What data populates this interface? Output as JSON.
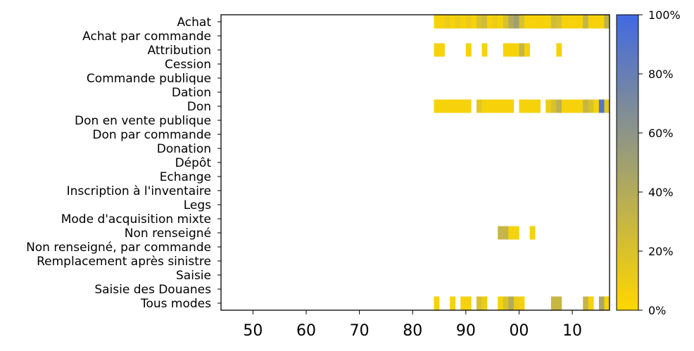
{
  "chart_data": {
    "type": "heatmap",
    "title": "",
    "xlabel": "",
    "ylabel": "",
    "x_range": [
      1944,
      2017
    ],
    "x_ticks": [
      {
        "value": 1950,
        "label": "50"
      },
      {
        "value": 1960,
        "label": "60"
      },
      {
        "value": 1970,
        "label": "70"
      },
      {
        "value": 1980,
        "label": "80"
      },
      {
        "value": 1990,
        "label": "90"
      },
      {
        "value": 2000,
        "label": "00"
      },
      {
        "value": 2010,
        "label": "10"
      }
    ],
    "categories": [
      "Achat",
      "Achat par commande",
      "Attribution",
      "Cession",
      "Commande publique",
      "Dation",
      "Don",
      "Don en vente publique",
      "Don par commande",
      "Donation",
      "Dépôt",
      "Echange",
      "Inscription à l'inventaire",
      "Legs",
      "Mode d'acquisition mixte",
      "Non renseigné",
      "Non renseigné, par commande",
      "Remplacement après sinistre",
      "Saisie",
      "Saisie des Douanes",
      "Tous modes"
    ],
    "value_unit": "%",
    "cells": {
      "Achat": [
        [
          1984,
          5
        ],
        [
          1985,
          5
        ],
        [
          1986,
          10
        ],
        [
          1987,
          5
        ],
        [
          1988,
          10
        ],
        [
          1989,
          5
        ],
        [
          1990,
          10
        ],
        [
          1991,
          5
        ],
        [
          1992,
          20
        ],
        [
          1993,
          25
        ],
        [
          1994,
          5
        ],
        [
          1995,
          10
        ],
        [
          1996,
          5
        ],
        [
          1997,
          20
        ],
        [
          1998,
          40
        ],
        [
          1999,
          50
        ],
        [
          2000,
          20
        ],
        [
          2001,
          5
        ],
        [
          2002,
          5
        ],
        [
          2003,
          5
        ],
        [
          2004,
          5
        ],
        [
          2005,
          5
        ],
        [
          2006,
          25
        ],
        [
          2007,
          20
        ],
        [
          2008,
          5
        ],
        [
          2009,
          5
        ],
        [
          2010,
          5
        ],
        [
          2011,
          5
        ],
        [
          2012,
          30
        ],
        [
          2013,
          5
        ],
        [
          2014,
          5
        ],
        [
          2015,
          5
        ],
        [
          2016,
          35
        ]
      ],
      "Attribution": [
        [
          1984,
          5
        ],
        [
          1985,
          5
        ],
        [
          1990,
          5
        ],
        [
          1993,
          5
        ],
        [
          1997,
          5
        ],
        [
          1998,
          5
        ],
        [
          1999,
          5
        ],
        [
          2000,
          30
        ],
        [
          2001,
          5
        ],
        [
          2007,
          5
        ]
      ],
      "Don": [
        [
          1984,
          5
        ],
        [
          1985,
          5
        ],
        [
          1986,
          5
        ],
        [
          1987,
          5
        ],
        [
          1988,
          5
        ],
        [
          1989,
          5
        ],
        [
          1990,
          5
        ],
        [
          1992,
          15
        ],
        [
          1993,
          5
        ],
        [
          1994,
          5
        ],
        [
          1995,
          5
        ],
        [
          1996,
          5
        ],
        [
          1997,
          5
        ],
        [
          1998,
          5
        ],
        [
          2000,
          5
        ],
        [
          2001,
          5
        ],
        [
          2002,
          5
        ],
        [
          2003,
          5
        ],
        [
          2005,
          10
        ],
        [
          2006,
          20
        ],
        [
          2007,
          35
        ],
        [
          2008,
          5
        ],
        [
          2009,
          5
        ],
        [
          2010,
          5
        ],
        [
          2011,
          5
        ],
        [
          2012,
          30
        ],
        [
          2013,
          20
        ],
        [
          2014,
          5
        ],
        [
          2015,
          90
        ],
        [
          2016,
          15
        ]
      ],
      "Non renseigné": [
        [
          1996,
          30
        ],
        [
          1997,
          30
        ],
        [
          1998,
          5
        ],
        [
          1999,
          5
        ],
        [
          2002,
          5
        ]
      ],
      "Tous modes": [
        [
          1984,
          5
        ],
        [
          1987,
          5
        ],
        [
          1989,
          5
        ],
        [
          1990,
          5
        ],
        [
          1992,
          20
        ],
        [
          1993,
          10
        ],
        [
          1996,
          5
        ],
        [
          1997,
          20
        ],
        [
          1998,
          40
        ],
        [
          1999,
          10
        ],
        [
          2000,
          5
        ],
        [
          2006,
          30
        ],
        [
          2007,
          30
        ],
        [
          2012,
          30
        ],
        [
          2013,
          5
        ],
        [
          2015,
          45
        ],
        [
          2016,
          5
        ]
      ]
    },
    "colorbar": {
      "range": [
        0,
        100
      ],
      "ticks": [
        "0%",
        "20%",
        "40%",
        "60%",
        "80%",
        "100%"
      ],
      "colors": [
        "#FFD700",
        "#4169E1"
      ]
    }
  }
}
